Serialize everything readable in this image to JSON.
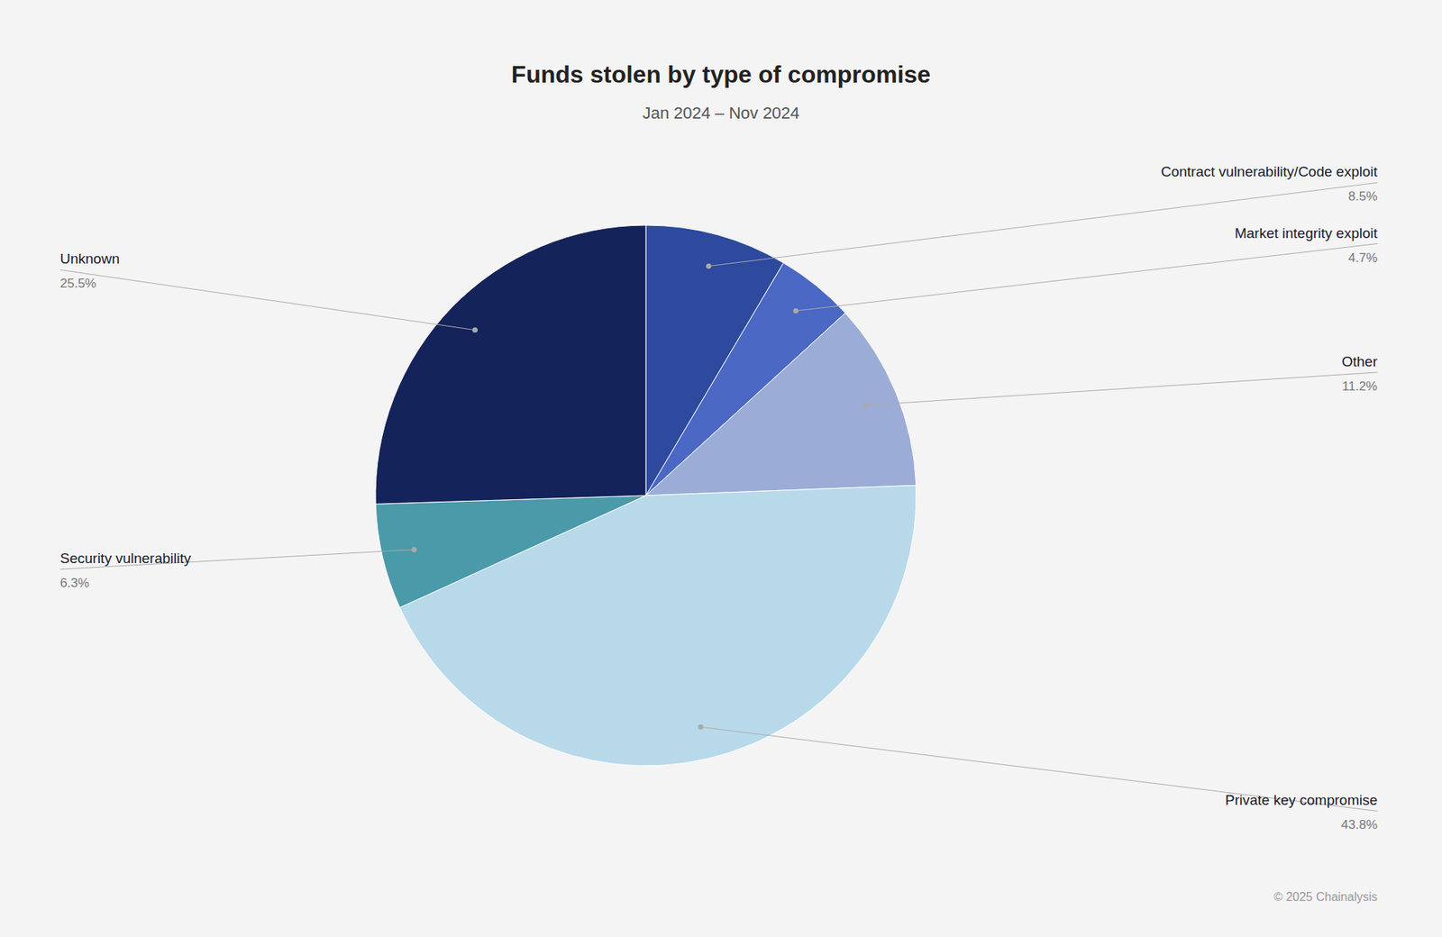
{
  "chart_data": {
    "type": "pie",
    "title": "Funds stolen by type of compromise",
    "subtitle": "Jan 2024 – Nov 2024",
    "categories": [
      "Contract vulnerability/Code exploit",
      "Market integrity exploit",
      "Other",
      "Private key compromise",
      "Security vulnerability",
      "Unknown"
    ],
    "values": [
      8.5,
      4.7,
      11.2,
      43.8,
      6.3,
      25.5
    ],
    "value_labels": [
      "8.5%",
      "4.7%",
      "11.2%",
      "43.8%",
      "6.3%",
      "25.5%"
    ],
    "colors": [
      "#2d4a9e",
      "#4a68c4",
      "#9bacd6",
      "#b8d9ea",
      "#4a9aaa",
      "#14235a"
    ],
    "data_labels": true,
    "annotations": [
      "© 2025 Chainalysis"
    ]
  }
}
